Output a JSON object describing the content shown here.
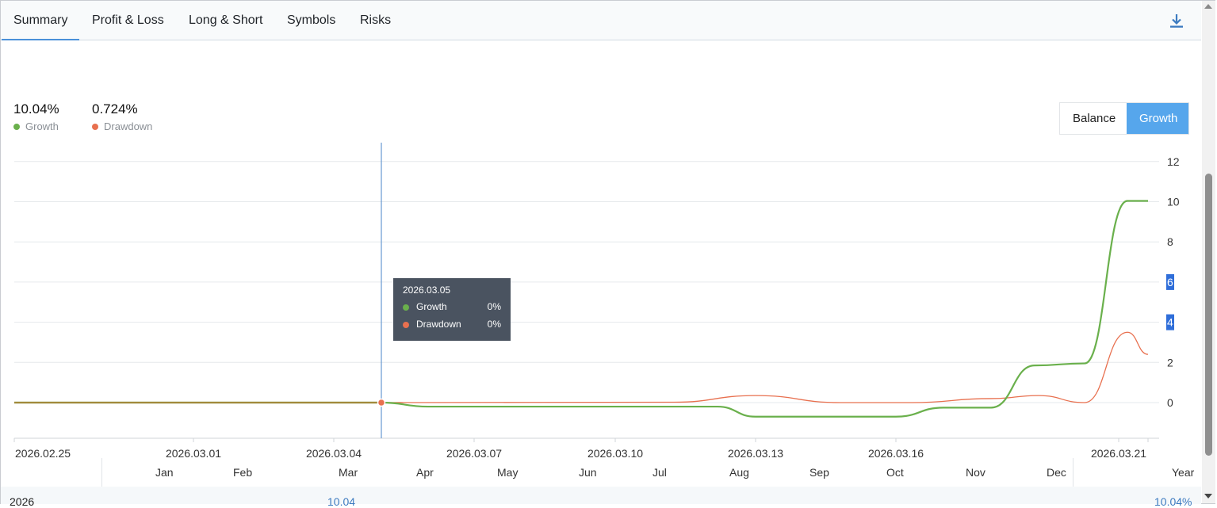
{
  "tabs": [
    "Summary",
    "Profit & Loss",
    "Long & Short",
    "Symbols",
    "Risks"
  ],
  "active_tab": "Summary",
  "icons": {
    "download": "download-icon"
  },
  "stats": {
    "growth": {
      "value": "10.04%",
      "label": "Growth",
      "color": "#6ab04c"
    },
    "drawdown": {
      "value": "0.724%",
      "label": "Drawdown",
      "color": "#e8704f"
    }
  },
  "toggle": {
    "balance": "Balance",
    "growth": "Growth",
    "selected": "Growth"
  },
  "tooltip": {
    "date": "2026.03.05",
    "growth_label": "Growth",
    "growth_value": "0%",
    "drawdown_label": "Drawdown",
    "drawdown_value": "0%"
  },
  "chart_data": {
    "type": "line",
    "x_tick_labels": [
      "2026.02.25",
      "2026.03.01",
      "2026.03.04",
      "2026.03.07",
      "2026.03.10",
      "2026.03.13",
      "2026.03.16",
      "2026.03.21"
    ],
    "y_ticks": [
      12,
      10,
      8,
      6,
      4,
      2,
      0
    ],
    "ylim": [
      -1.8,
      12.9
    ],
    "x": [
      "2026.02.25",
      "2026.03.05",
      "2026.03.06",
      "2026.03.08",
      "2026.03.12",
      "2026.03.13",
      "2026.03.16",
      "2026.03.17",
      "2026.03.18",
      "2026.03.19",
      "2026.03.20",
      "2026.03.21"
    ],
    "series": [
      {
        "name": "Growth",
        "color": "#6ab04c",
        "values": [
          0,
          0,
          -0.2,
          -0.2,
          -0.2,
          -0.7,
          -0.7,
          -0.25,
          -0.25,
          1.85,
          1.95,
          10.04
        ]
      },
      {
        "name": "Drawdown",
        "color": "#e8704f",
        "values": [
          0,
          0,
          0,
          0,
          0.05,
          0.35,
          0,
          0.05,
          0.2,
          0.35,
          0,
          2.4
        ]
      }
    ],
    "drawdown_peak": 3.5,
    "highlight_ticks": [
      6,
      4
    ],
    "crosshair_date": "2026.03.05",
    "grid": true
  },
  "bottom": {
    "months": [
      "Jan",
      "Feb",
      "Mar",
      "Apr",
      "May",
      "Jun",
      "Jul",
      "Aug",
      "Sep",
      "Oct",
      "Nov",
      "Dec",
      "Year"
    ],
    "year": "2026",
    "mar_value": "10.04",
    "year_value": "10.04%"
  }
}
